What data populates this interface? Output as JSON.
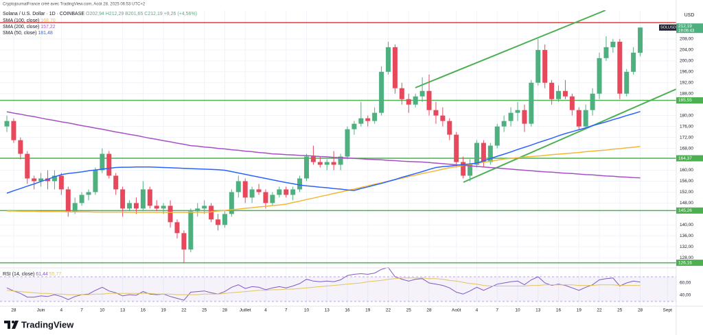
{
  "header": {
    "attribution": "CryptojournalFrance créé avec TradingView.com, Août 28, 2025 06:53 UTC+2",
    "title": "Solana / U.S. Dollar · 1D · COINBASE",
    "ohlc": [
      "O202,94",
      "H212,29",
      "B201,65",
      "C212,19",
      "+9,26 (+4,56%)"
    ]
  },
  "logo": "TradingView",
  "chart_data": [
    {
      "type": "candlestick",
      "symbol": "SOLUSD",
      "axis_unit": "USD",
      "up_color": "#4fb07f",
      "down_color": "#e8485b",
      "categories": [
        null,
        "28",
        null,
        null,
        null,
        "Juin",
        null,
        null,
        "4",
        null,
        null,
        "7",
        null,
        null,
        "10",
        null,
        null,
        "13",
        null,
        null,
        "16",
        null,
        null,
        "19",
        null,
        null,
        "22",
        null,
        null,
        "25",
        null,
        null,
        "28",
        null,
        null,
        "Juillet",
        null,
        null,
        "4",
        null,
        null,
        "7",
        null,
        null,
        "10",
        null,
        null,
        "13",
        null,
        null,
        "16",
        null,
        null,
        "19",
        null,
        null,
        "22",
        null,
        null,
        "25",
        null,
        null,
        "28",
        null,
        null,
        null,
        "Août",
        null,
        null,
        "4",
        null,
        null,
        "7",
        null,
        null,
        "10",
        null,
        null,
        "13",
        null,
        null,
        "16",
        null,
        null,
        "19",
        null,
        null,
        "22",
        null,
        null,
        "25",
        null,
        null,
        "28",
        null,
        null,
        null,
        "Sept"
      ],
      "open": [
        176,
        178,
        171,
        166,
        157,
        156,
        157,
        156,
        158,
        153,
        145,
        148,
        151,
        152,
        160,
        166,
        158,
        153,
        146,
        148,
        146,
        153,
        147,
        146,
        147,
        141,
        137,
        131,
        145,
        146,
        147,
        142,
        140,
        144,
        152,
        156,
        150,
        153,
        152,
        148,
        151,
        153,
        151,
        153,
        157,
        165,
        163,
        162,
        163,
        162,
        165,
        175,
        177,
        179,
        178,
        181,
        196,
        205,
        190,
        186,
        184,
        187,
        189,
        182,
        180,
        178,
        173,
        163,
        158,
        162,
        170,
        163,
        169,
        176,
        178,
        181,
        182,
        177,
        192,
        204,
        192,
        186,
        189,
        187,
        182,
        176,
        182,
        188,
        201,
        205,
        207,
        188,
        196,
        202.94,
        null,
        null,
        null,
        null
      ],
      "high": [
        180,
        179,
        172,
        167,
        158,
        159,
        160,
        160,
        159,
        154,
        150,
        152,
        153,
        161,
        168,
        167,
        159,
        154,
        149,
        150,
        156,
        154,
        149,
        148,
        149,
        142,
        138,
        146,
        148,
        149,
        148,
        144,
        145,
        153,
        158,
        157,
        154,
        155,
        153,
        152,
        154,
        154,
        154,
        158,
        166,
        169,
        165,
        164,
        167,
        166,
        176,
        178,
        185,
        180,
        183,
        198,
        207,
        206,
        192,
        188,
        188,
        194,
        195,
        185,
        183,
        179,
        174,
        165,
        164,
        171,
        171,
        170,
        177,
        180,
        183,
        185,
        184,
        193,
        208,
        206,
        193,
        191,
        193,
        188,
        183,
        184,
        190,
        203,
        209,
        208,
        208,
        197,
        205,
        212.29,
        null,
        null,
        null,
        null
      ],
      "low": [
        174,
        170,
        164,
        155,
        153,
        154,
        153,
        153,
        151,
        143,
        144,
        147,
        149,
        151,
        159,
        157,
        151,
        143,
        145,
        144,
        145,
        146,
        145,
        144,
        139,
        135,
        126,
        130,
        143,
        144,
        141,
        138,
        139,
        143,
        150,
        148,
        148,
        151,
        146,
        147,
        150,
        150,
        149,
        152,
        156,
        162,
        161,
        160,
        160,
        160,
        164,
        173,
        176,
        176,
        177,
        180,
        195,
        188,
        184,
        181,
        183,
        185,
        180,
        177,
        176,
        171,
        161,
        157,
        156,
        161,
        161,
        162,
        168,
        174,
        176,
        178,
        174,
        176,
        191,
        190,
        184,
        185,
        186,
        180,
        175,
        175,
        180,
        186,
        200,
        203,
        186,
        187,
        195,
        201.65,
        null,
        null,
        null,
        null
      ],
      "close": [
        178,
        171,
        166,
        157,
        156,
        157,
        156,
        158,
        153,
        145,
        148,
        151,
        152,
        160,
        166,
        158,
        153,
        146,
        148,
        146,
        153,
        147,
        146,
        147,
        141,
        137,
        131,
        145,
        146,
        147,
        142,
        140,
        144,
        152,
        156,
        150,
        153,
        152,
        148,
        151,
        153,
        151,
        153,
        157,
        165,
        163,
        162,
        163,
        162,
        165,
        175,
        177,
        179,
        178,
        181,
        196,
        205,
        190,
        186,
        184,
        187,
        189,
        182,
        180,
        178,
        173,
        163,
        158,
        162,
        170,
        163,
        169,
        176,
        178,
        181,
        182,
        177,
        192,
        204,
        192,
        186,
        189,
        187,
        182,
        176,
        182,
        188,
        201,
        205,
        207,
        188,
        196,
        203,
        212.19,
        null,
        null,
        null,
        null
      ],
      "overlays": [
        {
          "name": "SMA (100, close)",
          "legend_value": "168,70",
          "color": "#f5b731",
          "values": [
            145.1,
            145.1,
            145.0,
            145.0,
            145.0,
            144.9,
            144.9,
            144.9,
            144.9,
            144.8,
            144.8,
            144.8,
            144.8,
            144.7,
            144.7,
            144.7,
            144.7,
            144.7,
            144.6,
            144.6,
            144.6,
            144.6,
            144.6,
            144.6,
            144.6,
            144.6,
            144.6,
            144.6,
            144.6,
            144.6,
            144.8,
            145.1,
            145.3,
            145.6,
            145.8,
            146.1,
            146.3,
            146.6,
            146.8,
            147.1,
            147.3,
            147.6,
            148.2,
            148.7,
            149.3,
            149.8,
            150.4,
            150.9,
            151.5,
            152.0,
            152.6,
            153.1,
            153.7,
            154.3,
            154.9,
            155.4,
            156.0,
            156.6,
            157.1,
            157.7,
            158.2,
            158.8,
            159.3,
            159.8,
            160.4,
            160.9,
            161.3,
            161.7,
            162.1,
            162.5,
            162.9,
            163.3,
            163.7,
            164.1,
            164.3,
            164.6,
            164.8,
            165.0,
            165.2,
            165.4,
            165.7,
            165.9,
            166.1,
            166.3,
            166.5,
            166.8,
            167.0,
            167.2,
            167.4,
            167.7,
            167.9,
            168.2,
            168.4,
            168.7,
            null,
            null,
            null,
            null
          ]
        },
        {
          "name": "SMA (200, close)",
          "legend_value": "157,22",
          "color": "#a64fc4",
          "values": [
            181.4,
            180.9,
            180.5,
            180.0,
            179.6,
            179.1,
            178.6,
            178.2,
            177.7,
            177.3,
            176.8,
            176.3,
            175.9,
            175.4,
            175.0,
            174.5,
            174.0,
            173.6,
            173.1,
            172.7,
            172.2,
            171.7,
            171.3,
            170.8,
            170.4,
            169.9,
            169.5,
            169.0,
            168.8,
            168.5,
            168.3,
            168.0,
            167.8,
            167.5,
            167.3,
            167.0,
            166.8,
            166.5,
            166.3,
            166.0,
            165.9,
            165.7,
            165.6,
            165.4,
            165.3,
            165.2,
            165.0,
            164.9,
            164.7,
            164.6,
            164.5,
            164.3,
            164.2,
            164.0,
            163.9,
            163.8,
            163.6,
            163.5,
            163.3,
            163.2,
            163.1,
            163.0,
            162.8,
            162.6,
            162.4,
            162.2,
            162.0,
            161.8,
            161.6,
            161.4,
            161.2,
            161.0,
            160.8,
            160.6,
            160.4,
            160.2,
            160.0,
            159.8,
            159.6,
            159.4,
            159.3,
            159.1,
            158.9,
            158.8,
            158.6,
            158.4,
            158.3,
            158.1,
            157.9,
            157.8,
            157.6,
            157.5,
            157.3,
            157.22,
            null,
            null,
            null,
            null
          ]
        },
        {
          "name": "SMA (50, close)",
          "legend_value": "181,48",
          "color": "#2962ff",
          "values": [
            151.6,
            152.5,
            153.3,
            154.2,
            155.0,
            155.9,
            156.7,
            157.6,
            158.4,
            158.8,
            159.1,
            159.4,
            159.8,
            160.1,
            160.4,
            160.7,
            161.0,
            161.1,
            161.1,
            161.2,
            161.2,
            161.2,
            161.1,
            161.0,
            160.9,
            160.8,
            160.7,
            160.6,
            160.5,
            160.4,
            160.3,
            160.2,
            160.0,
            159.5,
            159.0,
            158.5,
            158.0,
            157.5,
            157.0,
            156.5,
            156.0,
            155.5,
            155.1,
            154.6,
            154.3,
            154.1,
            153.8,
            153.6,
            153.3,
            153.1,
            152.8,
            152.6,
            153.3,
            153.9,
            154.6,
            155.2,
            155.9,
            156.6,
            157.4,
            158.1,
            158.8,
            159.5,
            160.3,
            161.0,
            161.3,
            161.5,
            161.8,
            162.1,
            162.3,
            162.6,
            163.4,
            164.3,
            165.1,
            165.9,
            166.7,
            167.6,
            168.4,
            169.2,
            170.1,
            170.9,
            171.7,
            172.6,
            173.4,
            174.1,
            174.8,
            175.5,
            176.3,
            177.0,
            177.7,
            178.5,
            179.2,
            180.0,
            180.7,
            181.48,
            null,
            null,
            null,
            null
          ]
        }
      ],
      "levels": [
        {
          "value": 214,
          "color": "#e03b3b"
        },
        {
          "value": 185.55,
          "label": "185,55",
          "color": "#4caf50"
        },
        {
          "value": 164.37,
          "label": "164,37",
          "color": "#4caf50"
        },
        {
          "value": 145.26,
          "label": "145,26",
          "color": "#4caf50"
        },
        {
          "value": 126.16,
          "label": "126,16",
          "color": "#4caf50"
        }
      ],
      "last_price": {
        "value": 212.19,
        "label": "212,19",
        "countdown": "19:06:43"
      },
      "ylim": [
        124.55,
        218.5
      ],
      "yticks": [
        {
          "value": 128,
          "label": "128,00"
        },
        {
          "value": 132,
          "label": "132,00"
        },
        {
          "value": 136,
          "label": "136,00"
        },
        {
          "value": 140,
          "label": "140,00"
        },
        {
          "value": 148,
          "label": "148,00"
        },
        {
          "value": 152,
          "label": "152,00"
        },
        {
          "value": 156,
          "label": "156,00"
        },
        {
          "value": 160,
          "label": "160,00"
        },
        {
          "value": 168,
          "label": "168,00"
        },
        {
          "value": 172,
          "label": "172,00"
        },
        {
          "value": 176,
          "label": "176,00"
        },
        {
          "value": 180,
          "label": "180,00"
        },
        {
          "value": 188,
          "label": "188,00"
        },
        {
          "value": 192,
          "label": "192,00"
        },
        {
          "value": 196,
          "label": "196,00"
        },
        {
          "value": 200,
          "label": "200,00"
        },
        {
          "value": 204,
          "label": "204,00"
        },
        {
          "value": 208,
          "label": "208,00"
        }
      ],
      "grid": true
    },
    {
      "type": "line",
      "title": "RSI (14, close)",
      "series": [
        {
          "legend_value": "61,44",
          "color": "#7e57c2",
          "values": [
            52,
            47,
            43,
            37,
            37,
            39,
            38,
            41,
            38,
            33,
            38,
            41,
            42,
            48,
            53,
            47,
            44,
            39,
            41,
            40,
            46,
            42,
            41,
            42,
            38,
            35,
            32,
            45,
            46,
            47,
            44,
            42,
            46,
            53,
            57,
            51,
            54,
            53,
            49,
            52,
            54,
            52,
            55,
            59,
            66,
            63,
            62,
            63,
            62,
            65,
            72,
            74,
            75,
            74,
            76,
            82,
            85,
            70,
            66,
            63,
            66,
            67,
            60,
            58,
            56,
            52,
            45,
            42,
            47,
            53,
            48,
            53,
            58,
            60,
            62,
            63,
            57,
            65,
            70,
            60,
            56,
            58,
            56,
            52,
            48,
            53,
            57,
            65,
            67,
            68,
            55,
            60,
            63,
            61.44,
            null,
            null,
            null,
            null
          ]
        },
        {
          "legend_value": "55,77",
          "color": "#e3c35a",
          "values": [
            48,
            47,
            46,
            45,
            44,
            43,
            43,
            42,
            42,
            41,
            41,
            41,
            41,
            42,
            42,
            43,
            43,
            43,
            43,
            43,
            43,
            43,
            42,
            42,
            42,
            41,
            41,
            41,
            41,
            42,
            42,
            42,
            43,
            44,
            45,
            46,
            47,
            48,
            48,
            49,
            49,
            50,
            50,
            51,
            52,
            53,
            54,
            55,
            56,
            57,
            58,
            59,
            60,
            62,
            63,
            64,
            66,
            67,
            68,
            68,
            68,
            68,
            67,
            67,
            66,
            64,
            63,
            61,
            59,
            58,
            56,
            55,
            55,
            55,
            55,
            55,
            55,
            56,
            56,
            57,
            57,
            57,
            57,
            57,
            56,
            56,
            56,
            57,
            57,
            57,
            56,
            56,
            56,
            55.77,
            null,
            null,
            null,
            null
          ]
        }
      ],
      "band": [
        30,
        70
      ],
      "ylim": [
        23.3,
        83.3
      ],
      "yticks": [
        {
          "value": 60,
          "label": "60,00"
        },
        {
          "value": 40,
          "label": "40,00"
        }
      ]
    }
  ]
}
